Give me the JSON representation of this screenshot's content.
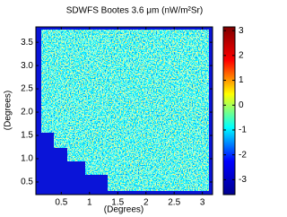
{
  "chart_data": {
    "type": "heatmap",
    "title": "SDWFS Bootes 3.6 μm   (nW/m²Sr)",
    "xlabel": "(Degrees)",
    "ylabel": "(Degrees)",
    "xlim": [
      0.05,
      3.18
    ],
    "ylim": [
      0.23,
      3.83
    ],
    "xticks": [
      0.5,
      1,
      1.5,
      2,
      2.5,
      3
    ],
    "yticks": [
      0.5,
      {
        "value": 1,
        "label": "1.0"
      },
      1.5,
      {
        "value": 2,
        "label": "2.0"
      },
      2.5,
      {
        "value": 3,
        "label": "3.0"
      },
      3.5
    ],
    "colorbar": {
      "lim": [
        -3.6,
        3.15
      ],
      "ticks": [
        -3,
        -2,
        -1,
        0,
        1,
        2,
        3
      ],
      "colormap": [
        "#00008f",
        "#0000ff",
        "#00ffff",
        "#ffff00",
        "#ff0000",
        "#800000"
      ]
    }
  }
}
